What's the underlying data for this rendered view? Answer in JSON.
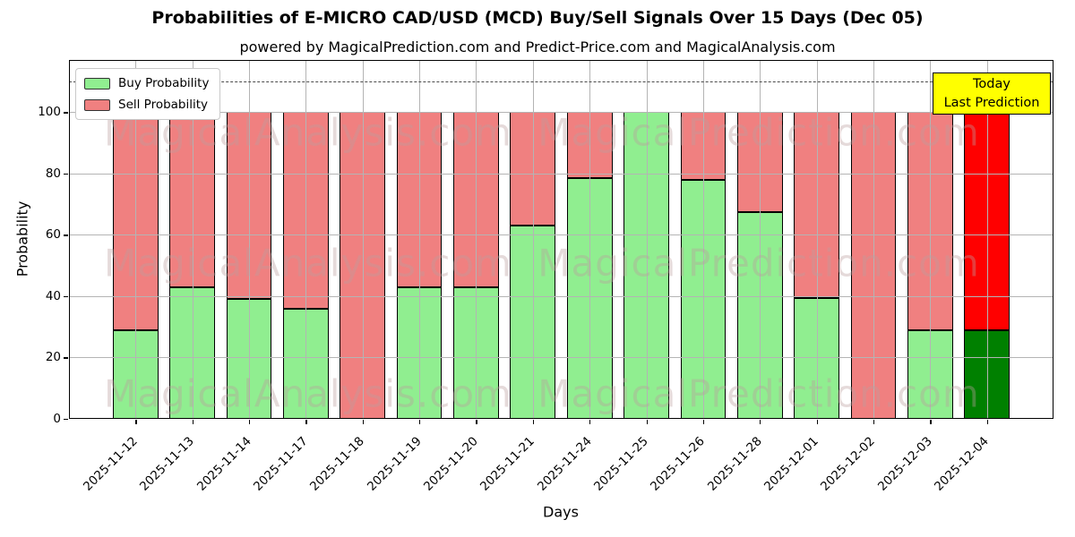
{
  "title": "Probabilities of E-MICRO CAD/USD (MCD) Buy/Sell Signals Over 15 Days (Dec 05)",
  "subtitle": "powered by MagicalPrediction.com and Predict-Price.com and MagicalAnalysis.com",
  "axes": {
    "ylabel": "Probability",
    "xlabel": "Days"
  },
  "legend": {
    "items": [
      {
        "label": "Buy Probability",
        "color": "#90EE90"
      },
      {
        "label": "Sell Probability",
        "color": "#F08080"
      }
    ]
  },
  "annotation": {
    "lines": [
      "Today",
      "Last Prediction"
    ],
    "bg_color": "#FFFF00"
  },
  "watermarks": {
    "texts": [
      "MagicalAnalysis.com",
      "MagicalPrediction.com"
    ]
  },
  "chart_data": {
    "type": "bar",
    "stacked": true,
    "title": "Probabilities of E-MICRO CAD/USD (MCD) Buy/Sell Signals Over 15 Days (Dec 05)",
    "xlabel": "Days",
    "ylabel": "Probability",
    "categories": [
      "2025-11-12",
      "2025-11-13",
      "2025-11-14",
      "2025-11-17",
      "2025-11-18",
      "2025-11-19",
      "2025-11-20",
      "2025-11-21",
      "2025-11-24",
      "2025-11-25",
      "2025-11-26",
      "2025-11-28",
      "2025-12-01",
      "2025-12-02",
      "2025-12-03",
      "2025-12-04"
    ],
    "series": [
      {
        "name": "Buy Probability",
        "color": "#90EE90",
        "values": [
          29,
          43,
          39,
          36,
          0,
          43,
          43,
          63,
          78.5,
          100,
          78,
          67.5,
          39.5,
          0,
          29,
          29
        ]
      },
      {
        "name": "Sell Probability",
        "color": "#F08080",
        "values": [
          71,
          57,
          61,
          64,
          100,
          57,
          57,
          37,
          21.5,
          0,
          22,
          32.5,
          60.5,
          100,
          71,
          71
        ]
      }
    ],
    "ylim": [
      0,
      117
    ],
    "yticks": [
      0,
      20,
      40,
      60,
      80,
      100
    ],
    "dashed_line_y": 110,
    "grid": true,
    "legend_position": "upper left",
    "last_bar_index": 15,
    "last_bar_colors": {
      "buy": "#008000",
      "sell": "#FF0000"
    }
  }
}
